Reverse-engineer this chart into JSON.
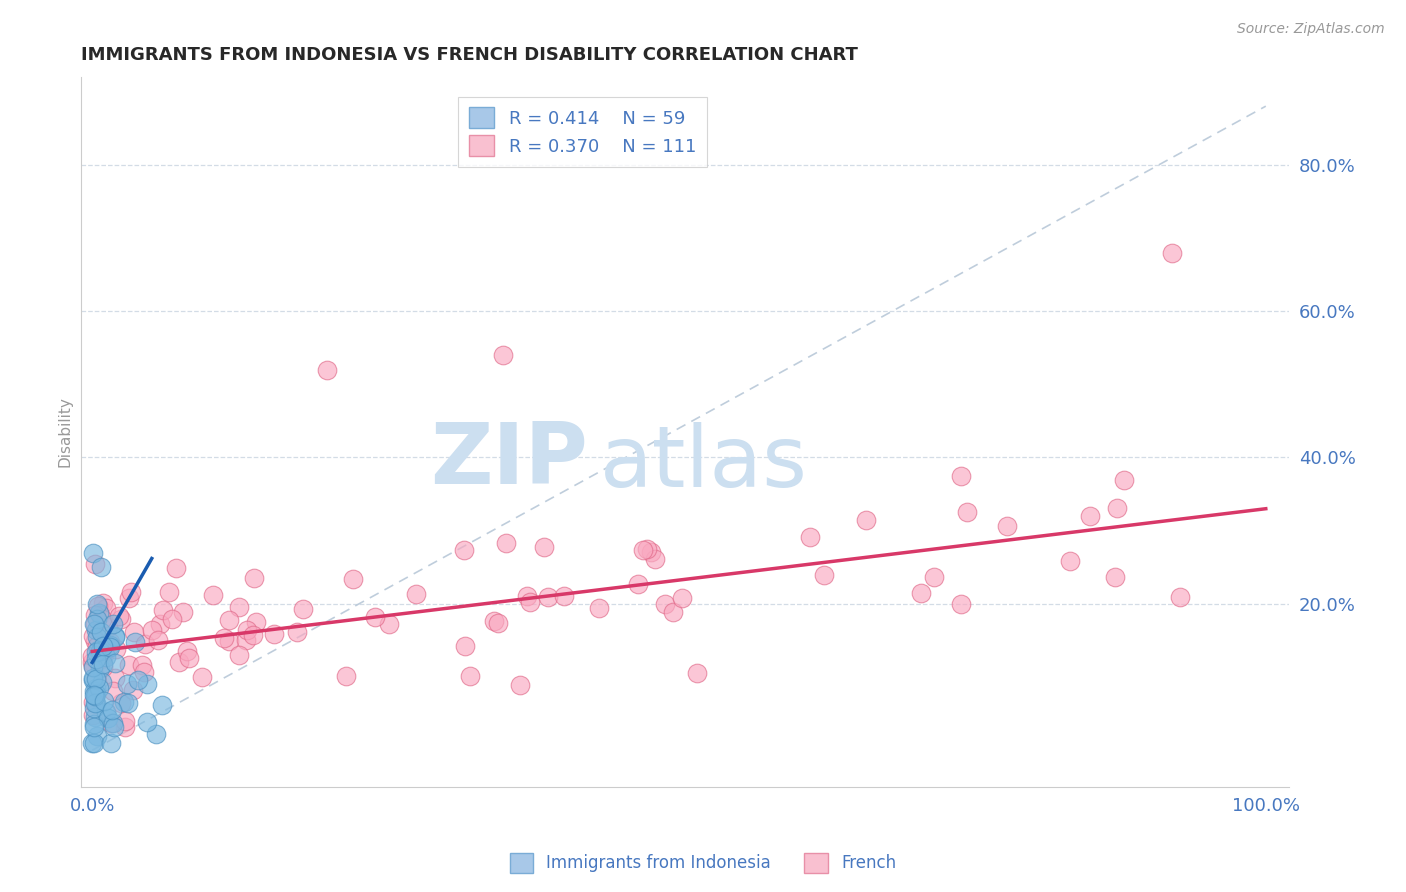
{
  "title": "IMMIGRANTS FROM INDONESIA VS FRENCH DISABILITY CORRELATION CHART",
  "source": "Source: ZipAtlas.com",
  "ylabel": "Disability",
  "xlim": [
    -0.01,
    1.02
  ],
  "ylim": [
    -0.05,
    0.92
  ],
  "ytick_positions": [
    0.2,
    0.4,
    0.6,
    0.8
  ],
  "ytick_labels": [
    "20.0%",
    "40.0%",
    "60.0%",
    "80.0%"
  ],
  "legend_entries": [
    {
      "label": "Immigrants from Indonesia",
      "color": "#a8c8e8",
      "edge": "#7aacd6",
      "R": 0.414,
      "N": 59
    },
    {
      "label": "French",
      "color": "#f9c0d0",
      "edge": "#e890a8",
      "R": 0.37,
      "N": 111
    }
  ],
  "watermark_zip": "ZIP",
  "watermark_atlas": "atlas",
  "watermark_color": "#ccdff0",
  "indonesia_color": "#7ab8e0",
  "indonesia_edge": "#4a90c0",
  "french_color": "#f9a8c0",
  "french_edge": "#e06888",
  "trend_indonesia_color": "#1a5cb0",
  "trend_french_color": "#d83868",
  "ref_line_color": "#b8c8d8",
  "background_color": "#ffffff",
  "title_color": "#282828",
  "axis_label_color": "#4878c0",
  "grid_color": "#c8d4e0"
}
